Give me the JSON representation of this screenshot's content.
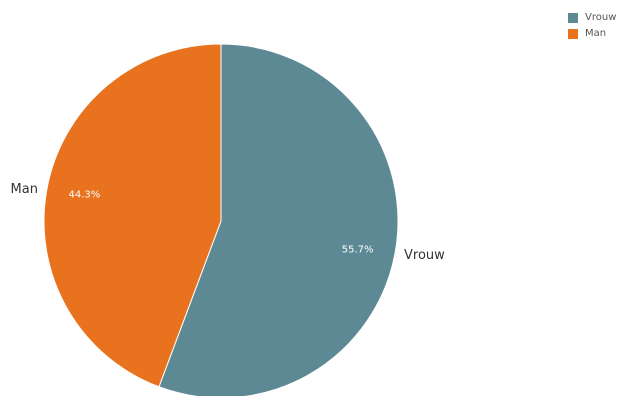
{
  "chart_data": {
    "type": "pie",
    "title": "",
    "slices": [
      {
        "label": "Vrouw",
        "value": 55.7,
        "value_label": "55.7%",
        "color": "#5d8995"
      },
      {
        "label": "Man",
        "value": 44.3,
        "value_label": "44.3%",
        "color": "#e8721e"
      }
    ],
    "start_angle": "12 o'clock",
    "direction": "clockwise",
    "legend_placement": "top-right",
    "legend": [
      {
        "label": "Vrouw",
        "color": "#5d8995"
      },
      {
        "label": "Man",
        "color": "#e8721e"
      }
    ]
  }
}
